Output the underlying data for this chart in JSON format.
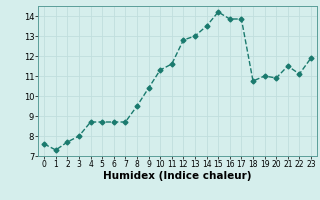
{
  "x": [
    0,
    1,
    2,
    3,
    4,
    5,
    6,
    7,
    8,
    9,
    10,
    11,
    12,
    13,
    14,
    15,
    16,
    17,
    18,
    19,
    20,
    21,
    22,
    23
  ],
  "y": [
    7.6,
    7.3,
    7.7,
    8.0,
    8.7,
    8.7,
    8.7,
    8.7,
    9.5,
    10.4,
    11.3,
    11.6,
    12.8,
    13.0,
    13.5,
    14.2,
    13.85,
    13.85,
    10.75,
    11.0,
    10.9,
    11.5,
    11.1,
    11.9
  ],
  "line_color": "#1a7a6e",
  "marker": "D",
  "marker_size": 2.5,
  "linewidth": 1.0,
  "xlabel": "Humidex (Indice chaleur)",
  "xlim": [
    -0.5,
    23.5
  ],
  "ylim": [
    7,
    14.5
  ],
  "yticks": [
    7,
    8,
    9,
    10,
    11,
    12,
    13,
    14
  ],
  "xticks": [
    0,
    1,
    2,
    3,
    4,
    5,
    6,
    7,
    8,
    9,
    10,
    11,
    12,
    13,
    14,
    15,
    16,
    17,
    18,
    19,
    20,
    21,
    22,
    23
  ],
  "bg_color": "#d5eeec",
  "grid_color": "#c0dedd",
  "xlabel_fontsize": 7.5,
  "tick_fontsize": 6,
  "xtick_fontsize": 5.5,
  "linestyle": "--"
}
